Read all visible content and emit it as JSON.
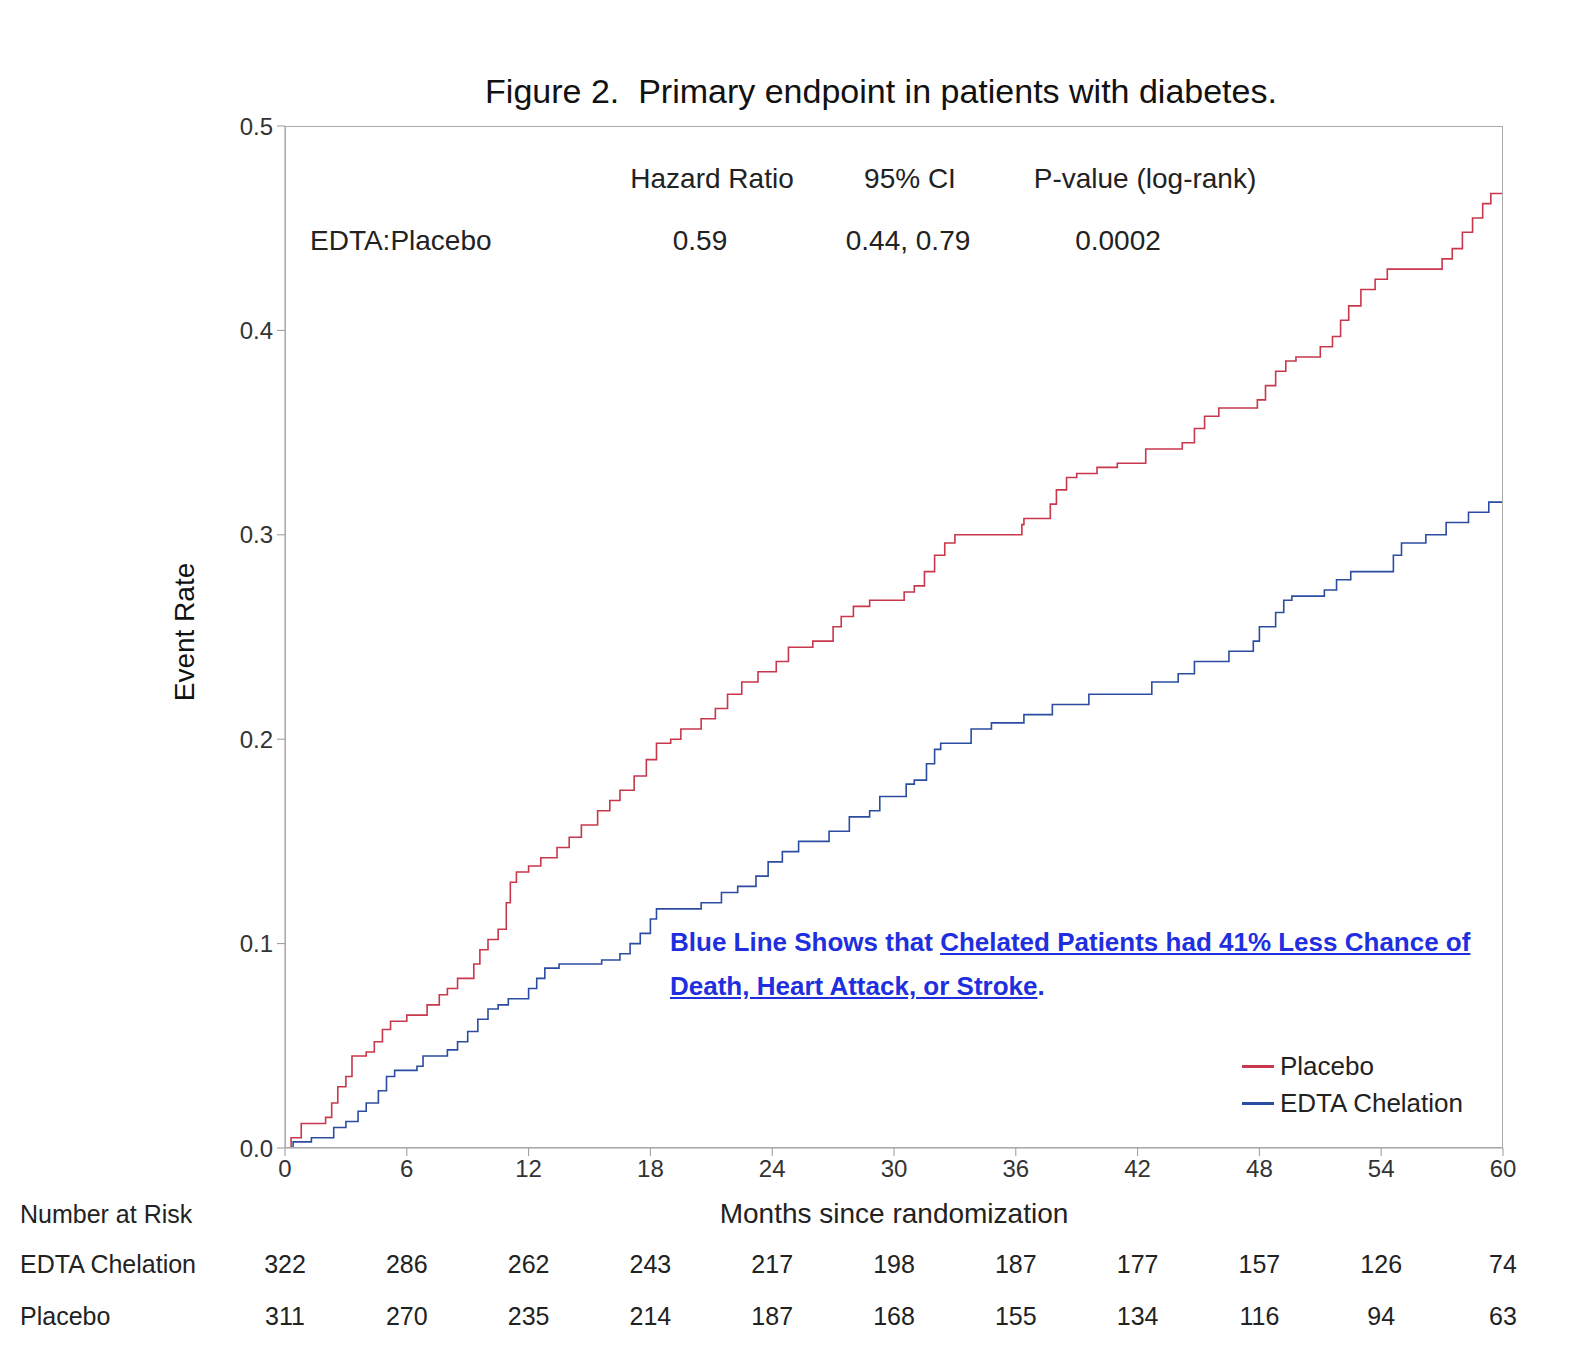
{
  "chart_data": {
    "type": "line",
    "title": "Figure 2.  Primary endpoint in patients with diabetes.",
    "x_label": "Months since randomization",
    "y_label": "Event Rate",
    "xlim": [
      0,
      60
    ],
    "xticks": [
      0,
      6,
      12,
      18,
      24,
      30,
      36,
      42,
      48,
      54,
      60
    ],
    "ylim": [
      0,
      0.5
    ],
    "yticks": [
      {
        "value": 0,
        "label": "0.0"
      },
      0.1,
      0.2,
      0.3,
      0.4,
      0.5
    ],
    "grid": false,
    "legend": "lower right",
    "line_style": "step",
    "series": [
      {
        "name": "Placebo",
        "color": "#c8374b",
        "x": [
          0,
          0.3,
          0.8,
          2.0,
          2.3,
          2.6,
          3.0,
          3.3,
          4.0,
          4.4,
          4.8,
          5.2,
          6.0,
          7.0,
          7.6,
          8.0,
          8.5,
          9.3,
          9.6,
          10.0,
          10.5,
          10.9,
          11.1,
          11.4,
          12.0,
          12.6,
          13.4,
          14.0,
          14.6,
          15.4,
          16.0,
          16.5,
          17.2,
          17.8,
          18.3,
          19.0,
          19.5,
          20.5,
          21.2,
          21.8,
          22.5,
          23.3,
          24.2,
          24.8,
          26.0,
          27.0,
          27.4,
          28.0,
          28.8,
          30.5,
          31.0,
          31.5,
          32.0,
          32.5,
          33.0,
          36.3,
          36.4,
          37.7,
          38.0,
          38.5,
          39.0,
          40.0,
          41.0,
          42.4,
          44.2,
          44.8,
          45.3,
          46.0,
          47.9,
          48.3,
          48.8,
          49.3,
          49.8,
          51.0,
          51.6,
          52.0,
          52.4,
          53.0,
          53.7,
          54.3,
          57.0,
          57.5,
          58.0,
          58.5,
          59.0,
          59.4,
          60
        ],
        "values": [
          0,
          0.005,
          0.012,
          0.015,
          0.022,
          0.03,
          0.035,
          0.045,
          0.047,
          0.052,
          0.058,
          0.062,
          0.065,
          0.07,
          0.075,
          0.078,
          0.083,
          0.09,
          0.097,
          0.102,
          0.107,
          0.12,
          0.13,
          0.135,
          0.138,
          0.142,
          0.147,
          0.152,
          0.158,
          0.165,
          0.17,
          0.175,
          0.182,
          0.19,
          0.198,
          0.2,
          0.205,
          0.21,
          0.215,
          0.222,
          0.228,
          0.233,
          0.238,
          0.245,
          0.248,
          0.255,
          0.26,
          0.265,
          0.268,
          0.272,
          0.275,
          0.282,
          0.29,
          0.296,
          0.3,
          0.305,
          0.308,
          0.315,
          0.322,
          0.328,
          0.33,
          0.333,
          0.335,
          0.342,
          0.345,
          0.352,
          0.358,
          0.362,
          0.366,
          0.373,
          0.38,
          0.385,
          0.387,
          0.392,
          0.397,
          0.405,
          0.412,
          0.42,
          0.425,
          0.43,
          0.435,
          0.44,
          0.448,
          0.455,
          0.462,
          0.467,
          0.467
        ]
      },
      {
        "name": "EDTA Chelation",
        "color": "#2b4ca0",
        "x": [
          0,
          0.4,
          1.3,
          2.4,
          3.0,
          3.6,
          4.0,
          4.6,
          5.0,
          5.4,
          6.5,
          6.8,
          8.0,
          8.5,
          9.0,
          9.5,
          10.0,
          10.5,
          11.0,
          12.0,
          12.4,
          12.8,
          13.5,
          15.6,
          16.5,
          17.0,
          17.5,
          18.0,
          18.3,
          20.5,
          21.5,
          22.3,
          23.2,
          23.8,
          24.5,
          25.3,
          26.8,
          27.8,
          28.8,
          29.3,
          30.6,
          31.0,
          31.6,
          32.0,
          32.3,
          33.8,
          34.8,
          36.4,
          37.8,
          39.6,
          42.7,
          44.0,
          44.8,
          46.5,
          47.7,
          48.0,
          48.8,
          49.2,
          49.6,
          51.2,
          51.8,
          52.5,
          54.6,
          55.0,
          56.2,
          57.2,
          58.3,
          59.3,
          60
        ],
        "values": [
          0,
          0.003,
          0.005,
          0.01,
          0.013,
          0.018,
          0.022,
          0.028,
          0.035,
          0.038,
          0.04,
          0.045,
          0.048,
          0.052,
          0.057,
          0.063,
          0.068,
          0.07,
          0.073,
          0.078,
          0.083,
          0.088,
          0.09,
          0.092,
          0.095,
          0.1,
          0.105,
          0.112,
          0.117,
          0.12,
          0.125,
          0.128,
          0.133,
          0.14,
          0.145,
          0.15,
          0.155,
          0.162,
          0.165,
          0.172,
          0.178,
          0.18,
          0.188,
          0.195,
          0.198,
          0.205,
          0.208,
          0.212,
          0.217,
          0.222,
          0.228,
          0.232,
          0.238,
          0.243,
          0.248,
          0.255,
          0.262,
          0.268,
          0.27,
          0.273,
          0.278,
          0.282,
          0.29,
          0.296,
          0.3,
          0.306,
          0.311,
          0.316,
          0.316
        ]
      }
    ],
    "stats_table": {
      "header": [
        "Hazard Ratio",
        "95% CI",
        "P-value (log-rank)"
      ],
      "row_label": "EDTA:Placebo",
      "values": [
        "0.59",
        "0.44, 0.79",
        "0.0002"
      ]
    },
    "annotation": {
      "lead": "Blue Line Shows that ",
      "underlined": "Chelated Patients had 41% Less Chance of Death, Heart Attack, or Stroke",
      "tail": ".",
      "color": "#1f2fe0"
    },
    "risk_table": {
      "title": "Number at Risk",
      "rows": [
        {
          "name": "EDTA Chelation",
          "values": [
            322,
            286,
            262,
            243,
            217,
            198,
            187,
            177,
            157,
            126,
            74
          ]
        },
        {
          "name": "Placebo",
          "values": [
            311,
            270,
            235,
            214,
            187,
            168,
            155,
            134,
            116,
            94,
            63
          ]
        }
      ]
    }
  }
}
